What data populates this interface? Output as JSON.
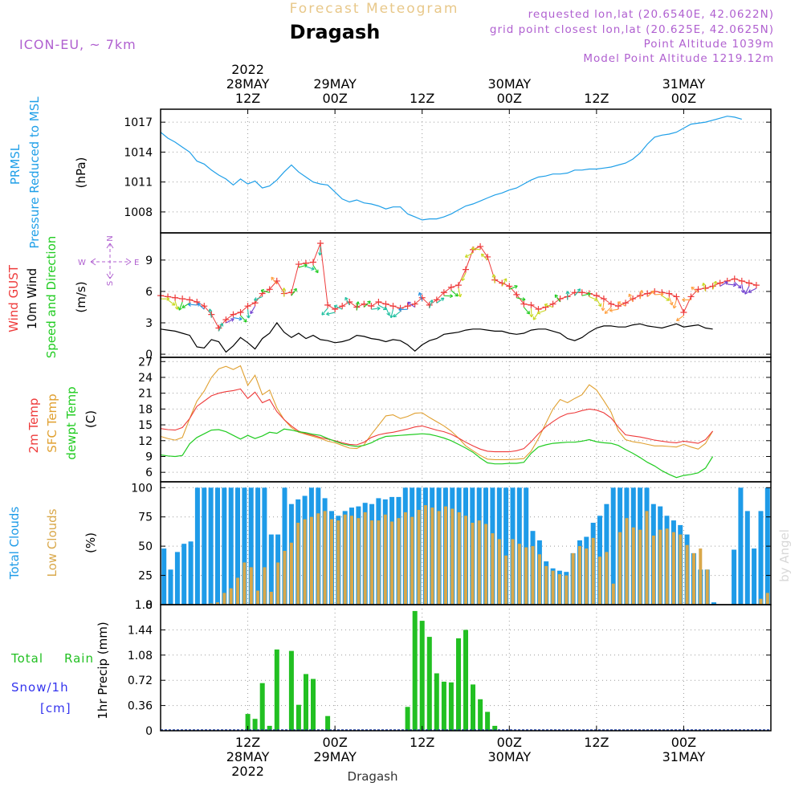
{
  "header": {
    "title": "Forecast Meteogram",
    "location": "Dragash",
    "model": "ICON-EU, ~ 7km",
    "requested": "requested lon,lat (20.6540E, 42.0622N)",
    "grid": "grid point closest lon,lat (20.625E, 42.0625N)",
    "point_alt": "Point Altitude 1039m",
    "model_alt": "Model Point Altitude 1219.12m",
    "footer": "Dragash",
    "credit": "by Angel"
  },
  "time_axis": {
    "hours": 84,
    "year": "2022",
    "ticks": [
      {
        "hour": 12,
        "top": "12Z",
        "date": "28MAY",
        "year": "2022"
      },
      {
        "hour": 24,
        "top": "00Z",
        "date": "29MAY",
        "year": ""
      },
      {
        "hour": 36,
        "top": "12Z",
        "date": "",
        "year": ""
      },
      {
        "hour": 48,
        "top": "00Z",
        "date": "30MAY",
        "year": ""
      },
      {
        "hour": 60,
        "top": "12Z",
        "date": "",
        "year": ""
      },
      {
        "hour": 72,
        "top": "00Z",
        "date": "31MAY",
        "year": ""
      }
    ]
  },
  "labels": {
    "pressure": [
      "PRMSL",
      "Pressure Reduced to MSL",
      "(hPa)"
    ],
    "wind": [
      "Wind GUST",
      "10m Wind",
      "Speed and Direction",
      "(m/s)"
    ],
    "compass": {
      "n": "N",
      "s": "S",
      "w": "W",
      "e": "E"
    },
    "temp": [
      "2m Temp",
      "SFC Temp",
      "dewpt Temp",
      "(C)"
    ],
    "clouds": [
      "Total Clouds",
      "Low Clouds",
      "(%)"
    ],
    "precip": [
      "Total",
      "Rain",
      "Snow/1h",
      "[cm]",
      "1hr Precip (mm)"
    ]
  },
  "colors": {
    "pressure": "#1f9fe8",
    "gust": "#ee3b3b",
    "wind": "#000000",
    "temp2m": "#ee3b3b",
    "sfc": "#e0a030",
    "dewpt": "#22cc22",
    "total_clouds": "#1e9be8",
    "low_clouds": "#d9a84a",
    "rain": "#22c022",
    "snow": "#3333ee",
    "purple": "#b060d0",
    "title_gold": "#e8c88a"
  },
  "chart_data": [
    {
      "type": "line",
      "title": "PRMSL Pressure Reduced to MSL",
      "ylabel": "(hPa)",
      "ylim": [
        1005.9,
        1018.3
      ],
      "yticks": [
        "1008",
        "1011",
        "1014",
        "1017"
      ],
      "x_start_hour": 0,
      "x_step": 1,
      "series": [
        {
          "name": "PRMSL",
          "values": [
            1016.0,
            1015.4,
            1015.0,
            1014.5,
            1014.0,
            1013.1,
            1012.8,
            1012.2,
            1011.7,
            1011.3,
            1010.7,
            1011.3,
            1010.8,
            1011.1,
            1010.4,
            1010.6,
            1011.2,
            1012.0,
            1012.7,
            1012.0,
            1011.5,
            1011.0,
            1010.8,
            1010.7,
            1010.0,
            1009.3,
            1009.0,
            1009.2,
            1008.9,
            1008.8,
            1008.6,
            1008.3,
            1008.5,
            1008.5,
            1007.8,
            1007.5,
            1007.2,
            1007.3,
            1007.3,
            1007.5,
            1007.8,
            1008.2,
            1008.6,
            1008.8,
            1009.1,
            1009.4,
            1009.7,
            1009.9,
            1010.2,
            1010.4,
            1010.8,
            1011.2,
            1011.5,
            1011.6,
            1011.8,
            1011.8,
            1011.9,
            1012.2,
            1012.2,
            1012.3,
            1012.3,
            1012.4,
            1012.5,
            1012.7,
            1012.9,
            1013.3,
            1013.9,
            1014.8,
            1015.5,
            1015.7,
            1015.8,
            1016.0,
            1016.4,
            1016.8,
            1016.9,
            1017.0,
            1017.2,
            1017.4,
            1017.6,
            1017.5,
            1017.3
          ]
        }
      ]
    },
    {
      "type": "line",
      "title": "Wind GUST / 10m Wind Speed and Direction",
      "ylabel": "(m/s)",
      "ylim": [
        -0.3,
        11.6
      ],
      "yticks": [
        "0",
        "3",
        "6",
        "9"
      ],
      "x_start_hour": 0,
      "x_step": 1,
      "series": [
        {
          "name": "Wind GUST",
          "values": [
            5.6,
            5.5,
            5.4,
            5.3,
            5.2,
            5.0,
            4.6,
            3.8,
            2.5,
            3.3,
            3.8,
            4.0,
            4.6,
            4.9,
            5.8,
            6.2,
            7.0,
            5.8,
            5.9,
            8.6,
            8.7,
            8.8,
            10.6,
            4.7,
            4.3,
            4.6,
            5.0,
            4.5,
            4.8,
            4.6,
            5.0,
            4.8,
            4.6,
            4.4,
            4.6,
            4.8,
            5.4,
            4.7,
            5.2,
            5.9,
            6.4,
            6.6,
            8.1,
            10.0,
            10.3,
            9.3,
            7.1,
            6.8,
            6.5,
            5.7,
            4.8,
            4.7,
            4.3,
            4.5,
            4.8,
            5.3,
            5.5,
            5.9,
            5.9,
            5.8,
            5.6,
            5.3,
            4.8,
            4.6,
            4.9,
            5.3,
            5.6,
            5.8,
            6.0,
            5.9,
            5.8,
            5.5,
            4.0,
            5.5,
            6.2,
            6.3,
            6.5,
            6.8,
            7.0,
            7.2,
            7.0,
            6.8,
            6.6
          ]
        },
        {
          "name": "10m Wind",
          "values": [
            2.4,
            2.3,
            2.2,
            2.0,
            1.8,
            0.7,
            0.6,
            1.4,
            1.2,
            0.2,
            0.8,
            1.6,
            1.1,
            0.5,
            1.5,
            2.0,
            3.0,
            2.1,
            1.6,
            2.0,
            1.5,
            1.8,
            1.4,
            1.3,
            1.1,
            1.2,
            1.4,
            1.8,
            1.7,
            1.5,
            1.4,
            1.2,
            1.4,
            1.3,
            0.9,
            0.3,
            0.9,
            1.3,
            1.5,
            1.9,
            2.0,
            2.1,
            2.3,
            2.4,
            2.4,
            2.3,
            2.2,
            2.2,
            2.0,
            1.9,
            2.0,
            2.3,
            2.4,
            2.4,
            2.2,
            2.0,
            1.5,
            1.3,
            1.6,
            2.1,
            2.5,
            2.7,
            2.7,
            2.6,
            2.6,
            2.8,
            2.9,
            2.7,
            2.6,
            2.5,
            2.7,
            2.9,
            2.6,
            2.7,
            2.8,
            2.5,
            2.4
          ]
        }
      ]
    },
    {
      "type": "line",
      "title": "2m Temp / SFC Temp / dewpt Temp",
      "ylabel": "(C)",
      "ylim": [
        4.2,
        27.8
      ],
      "yticks": [
        "6",
        "9",
        "12",
        "15",
        "18",
        "21",
        "24",
        "27"
      ],
      "x_start_hour": 0,
      "x_step": 1,
      "series": [
        {
          "name": "2m Temp",
          "values": [
            14.3,
            14.1,
            14.0,
            14.5,
            16.2,
            18.5,
            19.5,
            20.5,
            21.0,
            21.3,
            21.5,
            21.8,
            20.0,
            21.2,
            19.2,
            19.8,
            17.5,
            16.0,
            14.8,
            13.8,
            13.3,
            13.0,
            12.6,
            12.3,
            12.0,
            11.6,
            11.3,
            11.2,
            11.7,
            12.6,
            13.1,
            13.4,
            13.6,
            13.9,
            14.2,
            14.6,
            14.8,
            14.4,
            14.0,
            13.7,
            13.2,
            12.5,
            11.7,
            11.0,
            10.4,
            10.0,
            9.9,
            9.9,
            9.9,
            10.1,
            10.5,
            11.8,
            13.3,
            14.6,
            15.6,
            16.5,
            17.1,
            17.3,
            17.7,
            18.0,
            17.8,
            17.3,
            16.3,
            14.6,
            13.1,
            12.9,
            12.7,
            12.4,
            12.1,
            11.9,
            11.7,
            11.6,
            11.9,
            11.7,
            11.5,
            12.2,
            13.8
          ]
        },
        {
          "name": "SFC Temp",
          "values": [
            12.8,
            12.4,
            12.1,
            12.6,
            16.2,
            19.5,
            21.4,
            24.0,
            25.6,
            26.1,
            25.5,
            26.2,
            22.5,
            24.4,
            20.7,
            21.6,
            18.2,
            16.0,
            14.5,
            13.6,
            13.2,
            12.8,
            12.4,
            11.9,
            11.6,
            11.1,
            10.6,
            10.5,
            11.2,
            13.2,
            14.9,
            16.7,
            16.9,
            16.2,
            16.6,
            17.2,
            17.3,
            16.4,
            15.6,
            14.8,
            13.8,
            12.5,
            11.0,
            10.1,
            9.2,
            8.5,
            8.4,
            8.4,
            8.4,
            8.5,
            8.6,
            10.0,
            12.4,
            15.2,
            18.0,
            19.8,
            19.2,
            20.0,
            20.7,
            22.6,
            21.6,
            19.6,
            17.4,
            13.9,
            12.2,
            11.8,
            11.6,
            11.3,
            11.0,
            11.0,
            10.9,
            10.8,
            11.3,
            10.8,
            10.4,
            11.5,
            13.8
          ]
        },
        {
          "name": "dewpt Temp",
          "values": [
            9.3,
            9.1,
            9.0,
            9.2,
            11.4,
            12.6,
            13.3,
            14.0,
            14.1,
            13.7,
            13.0,
            12.3,
            13.0,
            12.4,
            12.9,
            13.6,
            13.4,
            14.2,
            14.0,
            13.7,
            13.5,
            13.2,
            13.0,
            12.4,
            11.9,
            11.4,
            11.1,
            10.9,
            11.1,
            11.6,
            12.3,
            12.8,
            12.9,
            13.0,
            13.1,
            13.2,
            13.3,
            13.2,
            12.9,
            12.5,
            12.0,
            11.3,
            10.6,
            9.8,
            8.7,
            7.8,
            7.6,
            7.6,
            7.7,
            7.7,
            7.9,
            9.6,
            10.8,
            11.2,
            11.5,
            11.6,
            11.7,
            11.7,
            11.9,
            12.2,
            11.8,
            11.6,
            11.5,
            11.1,
            10.3,
            9.6,
            8.8,
            7.9,
            7.2,
            6.3,
            5.6,
            5.0,
            5.4,
            5.6,
            5.9,
            6.8,
            9.0
          ]
        }
      ]
    },
    {
      "type": "bar",
      "title": "Total Clouds / Low Clouds",
      "ylabel": "(%)",
      "ylim": [
        0,
        105
      ],
      "yticks": [
        "0",
        "25",
        "50",
        "75",
        "100"
      ],
      "x_start_hour": 0,
      "x_step": 1,
      "series": [
        {
          "name": "Total Clouds",
          "values": [
            48,
            30,
            45,
            52,
            54,
            100,
            100,
            100,
            100,
            100,
            100,
            100,
            100,
            100,
            100,
            100,
            60,
            60,
            100,
            86,
            90,
            93,
            100,
            100,
            91,
            80,
            76,
            80,
            83,
            84,
            87,
            86,
            91,
            90,
            92,
            92,
            100,
            100,
            100,
            100,
            100,
            100,
            100,
            100,
            100,
            100,
            100,
            100,
            100,
            100,
            100,
            100,
            100,
            100,
            100,
            63,
            55,
            37,
            31,
            29,
            28,
            44,
            55,
            58,
            70,
            76,
            86,
            100,
            100,
            100,
            100,
            100,
            100,
            86,
            84,
            76,
            72,
            68,
            60,
            44,
            30,
            30,
            2,
            0,
            0,
            47,
            100,
            80,
            48,
            80,
            100
          ]
        },
        {
          "name": "Low Clouds",
          "values": [
            0,
            0,
            0,
            0,
            0,
            0,
            0,
            1,
            2,
            10,
            14,
            23,
            36,
            32,
            12,
            32,
            11,
            36,
            46,
            53,
            70,
            73,
            75,
            78,
            80,
            73,
            72,
            77,
            76,
            74,
            79,
            72,
            72,
            77,
            71,
            74,
            79,
            75,
            81,
            85,
            83,
            80,
            84,
            82,
            79,
            76,
            70,
            72,
            69,
            61,
            56,
            42,
            56,
            52,
            49,
            50,
            43,
            33,
            29,
            26,
            25,
            44,
            50,
            48,
            57,
            41,
            45,
            18,
            62,
            74,
            66,
            64,
            80,
            59,
            64,
            65,
            62,
            60,
            51,
            44,
            48,
            30,
            0,
            0,
            0,
            0,
            0,
            0,
            0,
            5,
            10
          ]
        }
      ]
    },
    {
      "type": "bar",
      "title": "1hr Precip",
      "ylabel": "1hr Precip (mm)",
      "ylim": [
        0,
        1.8
      ],
      "yticks": [
        "0",
        "0.36",
        "0.72",
        "1.08",
        "1.44",
        "1.8"
      ],
      "x_start_hour": 0,
      "x_step": 1,
      "series": [
        {
          "name": "Total Rain",
          "values": [
            0,
            0,
            0,
            0,
            0,
            0,
            0,
            0,
            0,
            0,
            0,
            0,
            0.24,
            0.17,
            0.68,
            0.07,
            1.16,
            0,
            1.14,
            0.37,
            0.81,
            0.74,
            0,
            0.21,
            0,
            0,
            0,
            0,
            0,
            0,
            0,
            0,
            0,
            0,
            0.34,
            1.71,
            1.57,
            1.34,
            0.82,
            0.7,
            0.69,
            1.32,
            1.44,
            0.66,
            0.45,
            0.27,
            0.07,
            0,
            0,
            0,
            0,
            0,
            0,
            0,
            0,
            0,
            0,
            0,
            0,
            0,
            0,
            0,
            0,
            0,
            0,
            0,
            0,
            0,
            0,
            0,
            0,
            0,
            0,
            0,
            0,
            0,
            0,
            0,
            0,
            0,
            0,
            0,
            0,
            0
          ]
        },
        {
          "name": "Snow/1h",
          "values": [
            0,
            0,
            0,
            0,
            0,
            0,
            0,
            0,
            0,
            0,
            0,
            0,
            0,
            0,
            0,
            0,
            0,
            0,
            0,
            0,
            0,
            0,
            0,
            0,
            0,
            0,
            0,
            0,
            0,
            0,
            0,
            0,
            0,
            0,
            0,
            0,
            0,
            0,
            0,
            0,
            0,
            0,
            0,
            0,
            0,
            0,
            0,
            0,
            0,
            0,
            0,
            0,
            0,
            0,
            0,
            0,
            0,
            0,
            0,
            0,
            0,
            0,
            0,
            0,
            0,
            0,
            0,
            0,
            0,
            0,
            0,
            0,
            0,
            0,
            0,
            0,
            0,
            0,
            0,
            0,
            0,
            0,
            0,
            0
          ]
        }
      ]
    }
  ]
}
